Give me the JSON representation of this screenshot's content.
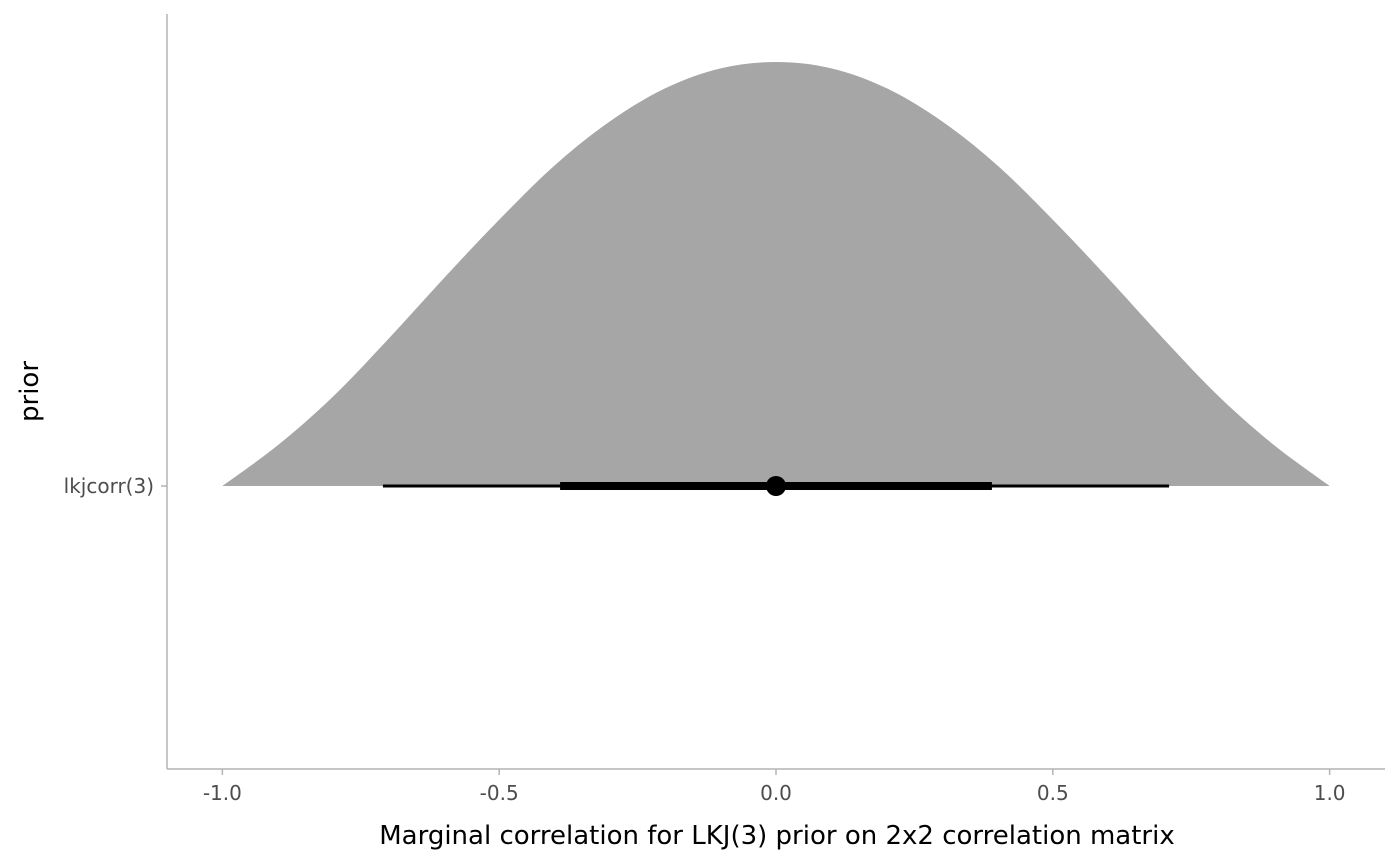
{
  "chart_data": {
    "type": "area",
    "subtype": "halfeye",
    "title": "",
    "xlabel": "Marginal correlation for LKJ(3) prior on 2x2 correlation matrix",
    "ylabel": "prior",
    "xlim": [
      -1.1,
      1.1
    ],
    "x_ticks": [
      -1.0,
      -0.5,
      0.0,
      0.5,
      1.0
    ],
    "x_tick_labels": [
      "-1.0",
      "-0.5",
      "0.0",
      "0.5",
      "1.0"
    ],
    "categories": [
      "lkjcorr(3)"
    ],
    "density": {
      "x": [
        -1.0,
        -0.9,
        -0.8,
        -0.7,
        -0.6,
        -0.5,
        -0.4,
        -0.3,
        -0.2,
        -0.1,
        0.0,
        0.1,
        0.2,
        0.3,
        0.4,
        0.5,
        0.6,
        0.7,
        0.8,
        0.9,
        1.0
      ],
      "relative_height": [
        0.0,
        0.096,
        0.211,
        0.347,
        0.49,
        0.628,
        0.756,
        0.86,
        0.938,
        0.985,
        1.0,
        0.985,
        0.938,
        0.86,
        0.756,
        0.628,
        0.49,
        0.347,
        0.211,
        0.096,
        0.0
      ]
    },
    "point_estimate": 0.0,
    "intervals": [
      {
        "level": 0.66,
        "lower": -0.39,
        "upper": 0.39
      },
      {
        "level": 0.95,
        "lower": -0.71,
        "upper": 0.71
      }
    ],
    "grid": false,
    "legend": "none",
    "colors": {
      "fill": "#a6a6a6",
      "interval": "#000000",
      "axis": "#b3b3b3"
    }
  }
}
